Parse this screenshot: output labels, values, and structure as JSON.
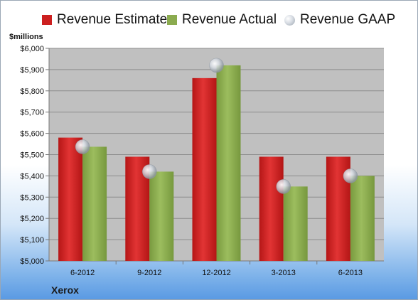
{
  "chart_data": {
    "type": "bar",
    "categories": [
      "6-2012",
      "9-2012",
      "12-2012",
      "3-2013",
      "6-2013"
    ],
    "series": [
      {
        "name": "Revenue Estimate",
        "kind": "bar",
        "color": "#cc1f1f",
        "values": [
          5580,
          5490,
          5860,
          5490,
          5490
        ]
      },
      {
        "name": "Revenue Actual",
        "kind": "bar",
        "color": "#8bab4f",
        "values": [
          5537,
          5420,
          5920,
          5350,
          5400
        ]
      },
      {
        "name": "Revenue GAAP",
        "kind": "marker",
        "color": "#c0c6ce",
        "values": [
          5537,
          5420,
          5920,
          5350,
          5400
        ]
      }
    ],
    "ylabel": "$millions",
    "ylim": [
      5000,
      6000
    ],
    "yticks": [
      5000,
      5100,
      5200,
      5300,
      5400,
      5500,
      5600,
      5700,
      5800,
      5900,
      6000
    ],
    "ytick_labels": [
      "$5,000",
      "$5,100",
      "$5,200",
      "$5,300",
      "$5,400",
      "$5,500",
      "$5,600",
      "$5,700",
      "$5,800",
      "$5,900",
      "$6,000"
    ],
    "grid": true,
    "legend": "top",
    "plot_background": "#c0c0c0"
  },
  "footer": {
    "company": "Xerox"
  }
}
